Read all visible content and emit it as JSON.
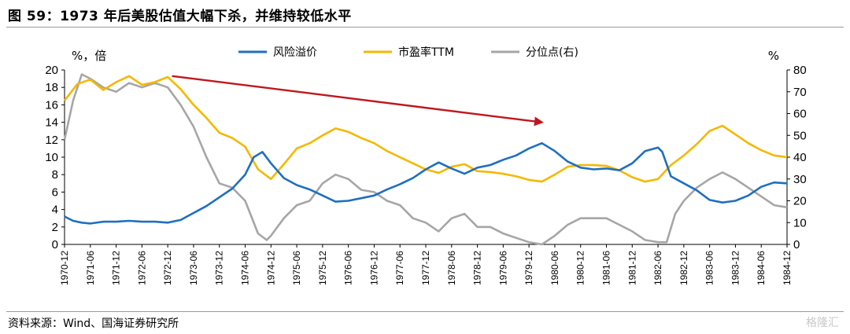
{
  "header": {
    "title": "图 59：1973 年后美股估值大幅下杀，并维持较低水平"
  },
  "footer": {
    "source": "资料来源：Wind、国海证券研究所",
    "watermark": "格隆汇"
  },
  "chart_data": {
    "type": "line",
    "left_axis": {
      "unit_label": "%，倍",
      "range": [
        0,
        20
      ],
      "ticks": [
        0,
        2,
        4,
        6,
        8,
        10,
        12,
        14,
        16,
        18,
        20
      ]
    },
    "right_axis": {
      "unit_label": "%",
      "range": [
        0,
        80
      ],
      "ticks": [
        0,
        10,
        20,
        30,
        40,
        50,
        60,
        70,
        80
      ]
    },
    "x_axis": {
      "ticks": [
        "1970-12",
        "1971-06",
        "1971-12",
        "1972-06",
        "1972-12",
        "1973-06",
        "1973-12",
        "1974-06",
        "1974-12",
        "1975-06",
        "1975-12",
        "1976-06",
        "1976-12",
        "1977-06",
        "1977-12",
        "1978-06",
        "1978-12",
        "1979-06",
        "1979-12",
        "1980-06",
        "1980-12",
        "1981-06",
        "1981-12",
        "1982-06",
        "1982-12",
        "1983-06",
        "1983-12",
        "1984-06",
        "1984-12"
      ]
    },
    "colors": {
      "risk_premium": "#1f6fbf",
      "pe_ttm": "#f5b800",
      "percentile": "#a6a6a6",
      "arrow": "#c0161f"
    },
    "trend_arrow": {
      "from": [
        "1973-01",
        19.3
      ],
      "to": [
        "1980-03",
        14.0
      ]
    },
    "series": [
      {
        "name": "风险溢价",
        "axis": "left",
        "key": "risk_premium",
        "points": [
          [
            "1970-12",
            3.2
          ],
          [
            "1971-02",
            2.7
          ],
          [
            "1971-04",
            2.5
          ],
          [
            "1971-06",
            2.4
          ],
          [
            "1971-09",
            2.6
          ],
          [
            "1971-12",
            2.6
          ],
          [
            "1972-03",
            2.7
          ],
          [
            "1972-06",
            2.6
          ],
          [
            "1972-09",
            2.6
          ],
          [
            "1972-12",
            2.5
          ],
          [
            "1973-03",
            2.8
          ],
          [
            "1973-06",
            3.6
          ],
          [
            "1973-09",
            4.4
          ],
          [
            "1973-12",
            5.4
          ],
          [
            "1974-03",
            6.4
          ],
          [
            "1974-06",
            8.0
          ],
          [
            "1974-08",
            10.0
          ],
          [
            "1974-10",
            10.6
          ],
          [
            "1974-12",
            9.3
          ],
          [
            "1975-03",
            7.6
          ],
          [
            "1975-06",
            6.8
          ],
          [
            "1975-09",
            6.3
          ],
          [
            "1975-12",
            5.6
          ],
          [
            "1976-03",
            4.9
          ],
          [
            "1976-06",
            5.0
          ],
          [
            "1976-09",
            5.3
          ],
          [
            "1976-12",
            5.6
          ],
          [
            "1977-03",
            6.3
          ],
          [
            "1977-06",
            6.9
          ],
          [
            "1977-09",
            7.6
          ],
          [
            "1977-12",
            8.6
          ],
          [
            "1978-03",
            9.4
          ],
          [
            "1978-06",
            8.7
          ],
          [
            "1978-09",
            8.1
          ],
          [
            "1978-12",
            8.8
          ],
          [
            "1979-03",
            9.1
          ],
          [
            "1979-06",
            9.7
          ],
          [
            "1979-09",
            10.2
          ],
          [
            "1979-12",
            11.0
          ],
          [
            "1980-03",
            11.6
          ],
          [
            "1980-06",
            10.7
          ],
          [
            "1980-09",
            9.5
          ],
          [
            "1980-12",
            8.8
          ],
          [
            "1981-03",
            8.6
          ],
          [
            "1981-06",
            8.7
          ],
          [
            "1981-09",
            8.5
          ],
          [
            "1981-12",
            9.3
          ],
          [
            "1982-03",
            10.7
          ],
          [
            "1982-06",
            11.1
          ],
          [
            "1982-07",
            10.6
          ],
          [
            "1982-09",
            7.8
          ],
          [
            "1982-12",
            7.0
          ],
          [
            "1983-03",
            6.2
          ],
          [
            "1983-06",
            5.1
          ],
          [
            "1983-09",
            4.8
          ],
          [
            "1983-12",
            5.0
          ],
          [
            "1984-03",
            5.6
          ],
          [
            "1984-06",
            6.6
          ],
          [
            "1984-09",
            7.1
          ],
          [
            "1984-12",
            7.0
          ]
        ]
      },
      {
        "name": "市盈率TTM",
        "axis": "left",
        "key": "pe_ttm",
        "points": [
          [
            "1970-12",
            16.5
          ],
          [
            "1971-03",
            18.4
          ],
          [
            "1971-06",
            18.9
          ],
          [
            "1971-09",
            17.7
          ],
          [
            "1971-12",
            18.6
          ],
          [
            "1972-03",
            19.3
          ],
          [
            "1972-06",
            18.3
          ],
          [
            "1972-09",
            18.6
          ],
          [
            "1972-12",
            19.2
          ],
          [
            "1973-03",
            17.8
          ],
          [
            "1973-06",
            16.0
          ],
          [
            "1973-09",
            14.5
          ],
          [
            "1973-12",
            12.8
          ],
          [
            "1974-03",
            12.2
          ],
          [
            "1974-06",
            11.2
          ],
          [
            "1974-09",
            8.6
          ],
          [
            "1974-12",
            7.5
          ],
          [
            "1975-03",
            9.2
          ],
          [
            "1975-06",
            11.0
          ],
          [
            "1975-09",
            11.6
          ],
          [
            "1975-12",
            12.5
          ],
          [
            "1976-03",
            13.3
          ],
          [
            "1976-06",
            12.9
          ],
          [
            "1976-09",
            12.2
          ],
          [
            "1976-12",
            11.6
          ],
          [
            "1977-03",
            10.7
          ],
          [
            "1977-06",
            10.0
          ],
          [
            "1977-09",
            9.3
          ],
          [
            "1977-12",
            8.6
          ],
          [
            "1978-03",
            8.2
          ],
          [
            "1978-06",
            8.9
          ],
          [
            "1978-09",
            9.2
          ],
          [
            "1978-12",
            8.4
          ],
          [
            "1979-03",
            8.3
          ],
          [
            "1979-06",
            8.1
          ],
          [
            "1979-09",
            7.8
          ],
          [
            "1979-12",
            7.4
          ],
          [
            "1980-03",
            7.2
          ],
          [
            "1980-06",
            8.0
          ],
          [
            "1980-09",
            8.9
          ],
          [
            "1980-12",
            9.1
          ],
          [
            "1981-03",
            9.1
          ],
          [
            "1981-06",
            9.0
          ],
          [
            "1981-09",
            8.5
          ],
          [
            "1981-12",
            7.7
          ],
          [
            "1982-03",
            7.2
          ],
          [
            "1982-06",
            7.5
          ],
          [
            "1982-09",
            9.1
          ],
          [
            "1982-12",
            10.2
          ],
          [
            "1983-03",
            11.5
          ],
          [
            "1983-06",
            13.0
          ],
          [
            "1983-09",
            13.6
          ],
          [
            "1983-12",
            12.6
          ],
          [
            "1984-03",
            11.6
          ],
          [
            "1984-06",
            10.8
          ],
          [
            "1984-09",
            10.2
          ],
          [
            "1984-12",
            10.0
          ]
        ]
      },
      {
        "name": "分位点(右)",
        "axis": "right",
        "key": "percentile",
        "points": [
          [
            "1970-12",
            48
          ],
          [
            "1971-02",
            66
          ],
          [
            "1971-04",
            78
          ],
          [
            "1971-06",
            76
          ],
          [
            "1971-09",
            72
          ],
          [
            "1971-12",
            70
          ],
          [
            "1972-03",
            74
          ],
          [
            "1972-06",
            72
          ],
          [
            "1972-09",
            74
          ],
          [
            "1972-12",
            72
          ],
          [
            "1973-03",
            64
          ],
          [
            "1973-06",
            54
          ],
          [
            "1973-09",
            40
          ],
          [
            "1973-12",
            28
          ],
          [
            "1974-03",
            26
          ],
          [
            "1974-06",
            20
          ],
          [
            "1974-09",
            5
          ],
          [
            "1974-11",
            2
          ],
          [
            "1974-12",
            4
          ],
          [
            "1975-03",
            12
          ],
          [
            "1975-06",
            18
          ],
          [
            "1975-09",
            20
          ],
          [
            "1975-12",
            28
          ],
          [
            "1976-03",
            32
          ],
          [
            "1976-06",
            30
          ],
          [
            "1976-09",
            25
          ],
          [
            "1976-12",
            24
          ],
          [
            "1977-03",
            20
          ],
          [
            "1977-06",
            18
          ],
          [
            "1977-09",
            12
          ],
          [
            "1977-12",
            10
          ],
          [
            "1978-03",
            6
          ],
          [
            "1978-06",
            12
          ],
          [
            "1978-09",
            14
          ],
          [
            "1978-12",
            8
          ],
          [
            "1979-03",
            8
          ],
          [
            "1979-06",
            5
          ],
          [
            "1979-09",
            3
          ],
          [
            "1979-12",
            1
          ],
          [
            "1980-03",
            0
          ],
          [
            "1980-06",
            4
          ],
          [
            "1980-09",
            9
          ],
          [
            "1980-12",
            12
          ],
          [
            "1981-03",
            12
          ],
          [
            "1981-06",
            12
          ],
          [
            "1981-09",
            9
          ],
          [
            "1981-12",
            6
          ],
          [
            "1982-03",
            2
          ],
          [
            "1982-06",
            1
          ],
          [
            "1982-08",
            1
          ],
          [
            "1982-10",
            14
          ],
          [
            "1982-12",
            20
          ],
          [
            "1983-03",
            26
          ],
          [
            "1983-06",
            30
          ],
          [
            "1983-09",
            33
          ],
          [
            "1983-12",
            30
          ],
          [
            "1984-03",
            26
          ],
          [
            "1984-06",
            22
          ],
          [
            "1984-09",
            18
          ],
          [
            "1984-12",
            17
          ]
        ]
      }
    ]
  }
}
